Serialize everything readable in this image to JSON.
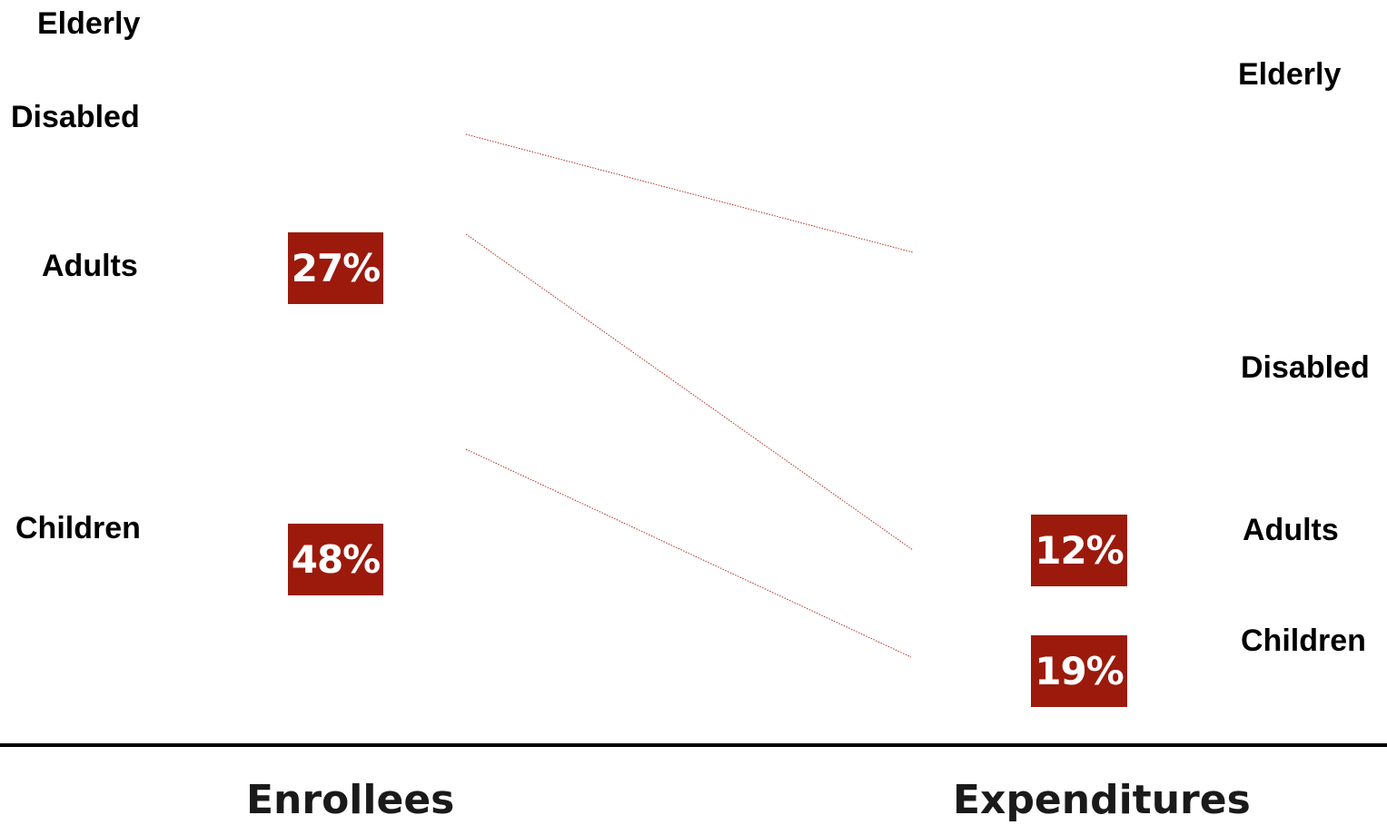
{
  "chart_data": {
    "type": "bar",
    "accent_color": "#9b1a0c",
    "connector_color": "#b03020",
    "columns": [
      {
        "title": "Enrollees",
        "categories": [
          {
            "label": "Elderly",
            "value": null
          },
          {
            "label": "Disabled",
            "value": null
          },
          {
            "label": "Adults",
            "value": "27%"
          },
          {
            "label": "Children",
            "value": "48%"
          }
        ]
      },
      {
        "title": "Expenditures",
        "categories": [
          {
            "label": "Elderly",
            "value": null
          },
          {
            "label": "Disabled",
            "value": null
          },
          {
            "label": "Adults",
            "value": "12%"
          },
          {
            "label": "Children",
            "value": "19%"
          }
        ]
      }
    ]
  }
}
